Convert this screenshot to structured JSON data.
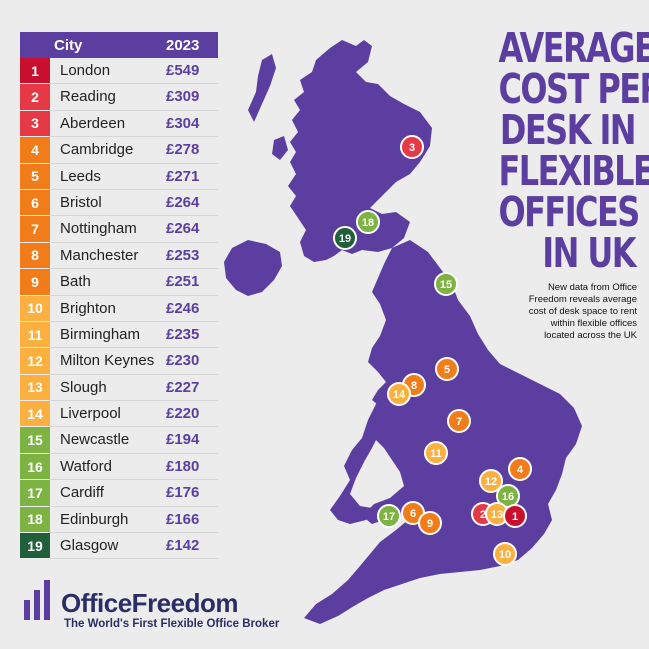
{
  "title_lines": [
    "AVERAGE",
    "COST PER",
    "DESK IN",
    "FLEXIBLE",
    "OFFICES",
    "IN UK"
  ],
  "subtitle": "New data from Office Freedom reveals average cost of desk space to rent within flexible offices located across the UK",
  "table": {
    "header_city": "City",
    "header_year": "2023"
  },
  "chart_data": {
    "type": "table",
    "columns": [
      "City",
      "2023"
    ],
    "unit": "£",
    "rows": [
      {
        "rank": "1",
        "city": "London",
        "price": "£549",
        "value": 549,
        "tier": "red"
      },
      {
        "rank": "2",
        "city": "Reading",
        "price": "£309",
        "value": 309,
        "tier": "pink"
      },
      {
        "rank": "3",
        "city": "Aberdeen",
        "price": "£304",
        "value": 304,
        "tier": "pink"
      },
      {
        "rank": "4",
        "city": "Cambridge",
        "price": "£278",
        "value": 278,
        "tier": "orange"
      },
      {
        "rank": "5",
        "city": "Leeds",
        "price": "£271",
        "value": 271,
        "tier": "orange"
      },
      {
        "rank": "6",
        "city": "Bristol",
        "price": "£264",
        "value": 264,
        "tier": "orange"
      },
      {
        "rank": "7",
        "city": "Nottingham",
        "price": "£264",
        "value": 264,
        "tier": "orange"
      },
      {
        "rank": "8",
        "city": "Manchester",
        "price": "£253",
        "value": 253,
        "tier": "orange"
      },
      {
        "rank": "9",
        "city": "Bath",
        "price": "£251",
        "value": 251,
        "tier": "orange"
      },
      {
        "rank": "10",
        "city": "Brighton",
        "price": "£246",
        "value": 246,
        "tier": "yellow"
      },
      {
        "rank": "11",
        "city": "Birmingham",
        "price": "£235",
        "value": 235,
        "tier": "yellow"
      },
      {
        "rank": "12",
        "city": "Milton Keynes",
        "price": "£230",
        "value": 230,
        "tier": "yellow"
      },
      {
        "rank": "13",
        "city": "Slough",
        "price": "£227",
        "value": 227,
        "tier": "yellow"
      },
      {
        "rank": "14",
        "city": "Liverpool",
        "price": "£220",
        "value": 220,
        "tier": "yellow"
      },
      {
        "rank": "15",
        "city": "Newcastle",
        "price": "£194",
        "value": 194,
        "tier": "green"
      },
      {
        "rank": "16",
        "city": "Watford",
        "price": "£180",
        "value": 180,
        "tier": "green"
      },
      {
        "rank": "17",
        "city": "Cardiff",
        "price": "£176",
        "value": 176,
        "tier": "green"
      },
      {
        "rank": "18",
        "city": "Edinburgh",
        "price": "£166",
        "value": 166,
        "tier": "green"
      },
      {
        "rank": "19",
        "city": "Glasgow",
        "price": "£142",
        "value": 142,
        "tier": "darkgreen"
      }
    ]
  },
  "tier_colors": {
    "red": "#c8102e",
    "pink": "#e63946",
    "orange": "#f07d1a",
    "yellow": "#fbb040",
    "green": "#7cb342",
    "darkgreen": "#1f5f3a"
  },
  "brand_colors": {
    "purple": "#5b3ea0",
    "navy": "#2b2e66",
    "background": "#ececec"
  },
  "logo": {
    "name": "OfficeFreedom",
    "tagline": "The World's First Flexible Office Broker"
  }
}
